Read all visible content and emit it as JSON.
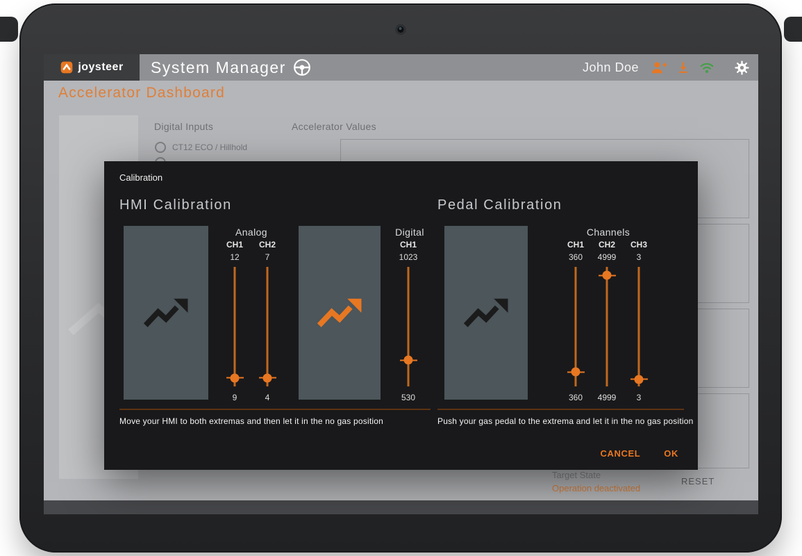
{
  "topbar": {
    "logo": "joysteer",
    "title": "System Manager",
    "user_name": "John Doe"
  },
  "page": {
    "title": "Accelerator Dashboard",
    "digital_inputs_label": "Digital Inputs",
    "digital_input_option_1": "CT12 ECO / Hillhold",
    "accelerator_values_label": "Accelerator Values",
    "target_state_label": "Target State",
    "target_state_value": "Operation deactivated",
    "reset_button": "RESET"
  },
  "modal": {
    "title": "Calibration",
    "hmi_heading": "HMI Calibration",
    "pedal_heading": "Pedal Calibration",
    "analog_label": "Analog",
    "digital_label": "Digital",
    "channels_label": "Channels",
    "hmi_instruction": "Move your HMI to both extremas and then let it in the no gas position",
    "pedal_instruction": "Push your gas pedal to the extrema and let it in the no gas position",
    "cancel_button": "CANCEL",
    "ok_button": "OK",
    "sliders": {
      "analog_ch1": {
        "channel": "CH1",
        "top_value": "12",
        "bottom_value": "9",
        "thumb_pct": 93
      },
      "analog_ch2": {
        "channel": "CH2",
        "top_value": "7",
        "bottom_value": "4",
        "thumb_pct": 93
      },
      "digital_ch1": {
        "channel": "CH1",
        "top_value": "1023",
        "bottom_value": "530",
        "thumb_pct": 78
      },
      "pedal_ch1": {
        "channel": "CH1",
        "top_value": "360",
        "bottom_value": "360",
        "thumb_pct": 88
      },
      "pedal_ch2": {
        "channel": "CH2",
        "top_value": "4999",
        "bottom_value": "4999",
        "thumb_pct": 7
      },
      "pedal_ch3": {
        "channel": "CH3",
        "top_value": "3",
        "bottom_value": "3",
        "thumb_pct": 94
      }
    }
  },
  "colors": {
    "accent": "#E87722",
    "status_green": "#43A047",
    "modal_bg": "#19191B",
    "calib_box_bg": "#4C565B"
  }
}
